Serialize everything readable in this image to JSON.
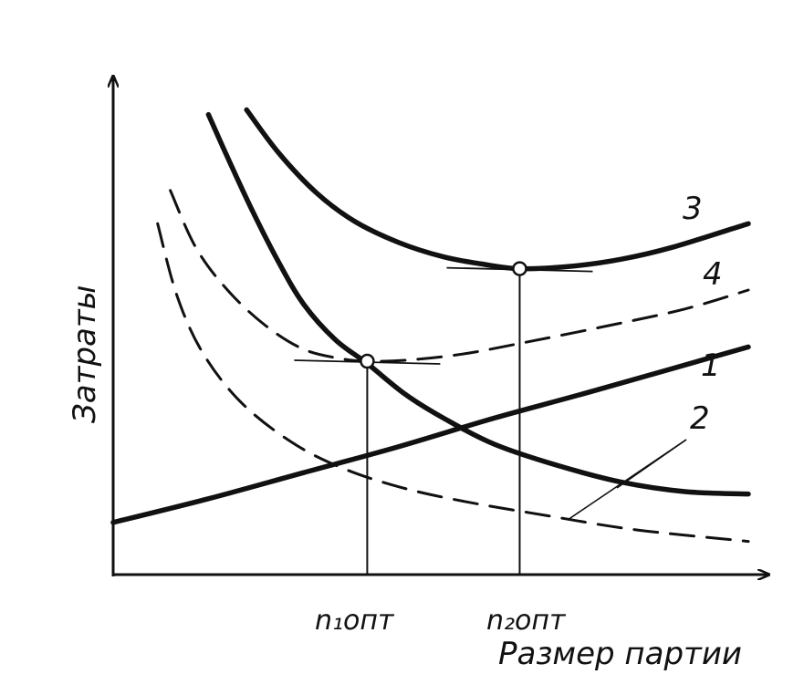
{
  "chart_data": {
    "type": "line",
    "title": "",
    "xlabel": "Размер партии",
    "ylabel": "Затраты",
    "axes_style": "arrows",
    "grid": false,
    "legend": "none (curves numbered directly)",
    "xlim": [
      0,
      100
    ],
    "ylim": [
      0,
      100
    ],
    "optimum_markers": [
      {
        "label": "n₁опт",
        "x": 40,
        "y": 45,
        "on_series": "4"
      },
      {
        "label": "n₂опт",
        "x": 64,
        "y": 64.5,
        "on_series": "3"
      }
    ],
    "series": [
      {
        "name": "1",
        "style": "solid thick",
        "x": [
          0,
          15,
          30,
          45,
          60,
          75,
          100
        ],
        "y": [
          11,
          16,
          21.5,
          27,
          33,
          38.5,
          48
        ]
      },
      {
        "name": "2",
        "style": "dashed",
        "x": [
          7,
          10,
          14,
          20,
          28,
          36,
          45,
          55,
          68,
          82,
          100
        ],
        "y": [
          74,
          59,
          47,
          36.5,
          28,
          22.5,
          18.5,
          15.5,
          12.5,
          9.5,
          7
        ]
      },
      {
        "name": "3",
        "style": "solid thick",
        "x": [
          21,
          26,
          32,
          38,
          45,
          52,
          58,
          64,
          72,
          80,
          88,
          100
        ],
        "y": [
          98,
          89,
          80.5,
          74.5,
          70,
          67,
          65.5,
          64.5,
          65,
          66.5,
          69,
          74
        ]
      },
      {
        "name": "4",
        "style": "dashed",
        "x": [
          9,
          13,
          18,
          24,
          30,
          36,
          40,
          46,
          55,
          65,
          78,
          90,
          100
        ],
        "y": [
          81,
          69,
          60,
          52.5,
          47.5,
          45.5,
          45,
          45.2,
          46.5,
          49,
          52.5,
          56,
          60
        ]
      },
      {
        "name": "curve-a",
        "style": "solid thick",
        "x": [
          15,
          18,
          22,
          26,
          30,
          35,
          40,
          46,
          52,
          60,
          70,
          80,
          90,
          100
        ],
        "y": [
          97,
          88,
          76.5,
          66,
          57,
          49.5,
          44.5,
          38,
          33,
          27.5,
          23,
          19.5,
          17.5,
          17
        ]
      }
    ],
    "curve_labels": [
      {
        "text": "3",
        "series": "3"
      },
      {
        "text": "4",
        "series": "4"
      },
      {
        "text": "1",
        "series": "1"
      },
      {
        "text": "2",
        "series": "2"
      }
    ]
  }
}
